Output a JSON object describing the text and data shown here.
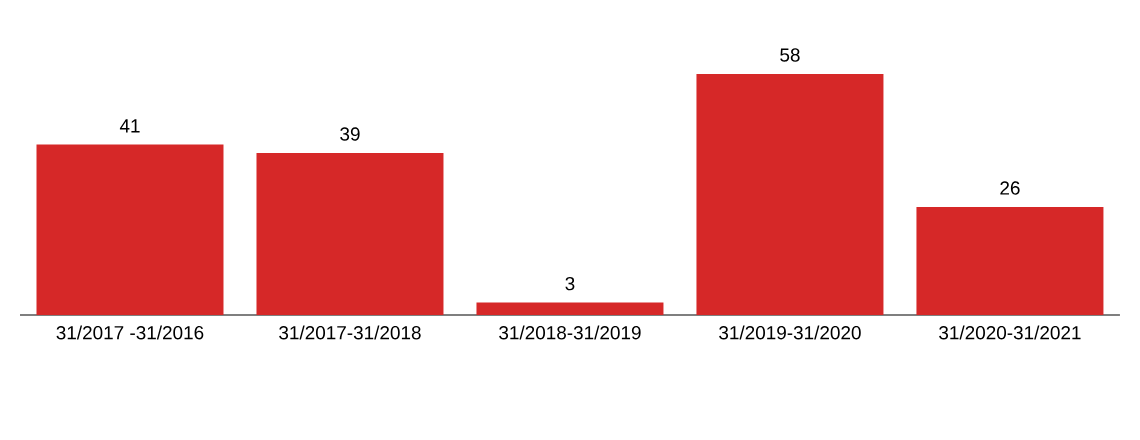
{
  "chart_data": {
    "type": "bar",
    "categories": [
      "31/2017 -31/2016",
      "31/2017-31/2018",
      "31/2018-31/2019",
      "31/2019-31/2020",
      "31/2020-31/2021"
    ],
    "values": [
      41,
      39,
      3,
      58,
      26
    ],
    "color": "#d62828",
    "data_labels": true
  }
}
